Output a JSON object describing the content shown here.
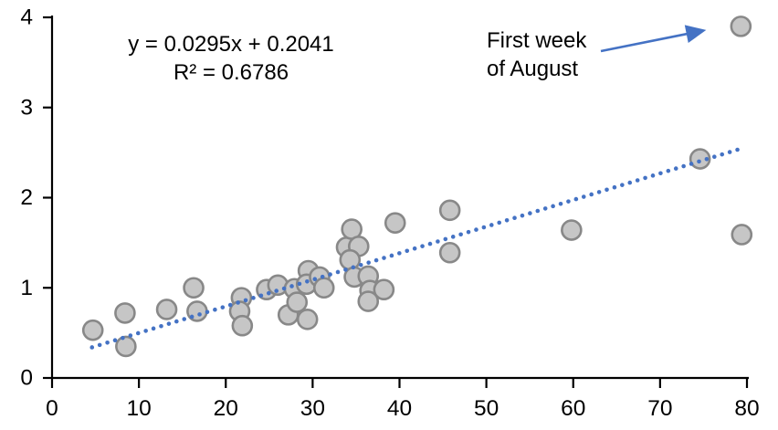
{
  "chart_data": {
    "type": "scatter",
    "title": "",
    "xlabel": "",
    "ylabel": "",
    "grid": false,
    "legend": "none",
    "points": [
      [
        4.7,
        0.53
      ],
      [
        8.4,
        0.72
      ],
      [
        8.5,
        0.35
      ],
      [
        13.2,
        0.76
      ],
      [
        16.3,
        1.0
      ],
      [
        16.7,
        0.74
      ],
      [
        21.8,
        0.89
      ],
      [
        21.6,
        0.74
      ],
      [
        21.9,
        0.58
      ],
      [
        24.7,
        0.98
      ],
      [
        26.0,
        1.03
      ],
      [
        27.9,
        0.99
      ],
      [
        27.2,
        0.7
      ],
      [
        28.2,
        0.84
      ],
      [
        29.5,
        1.19
      ],
      [
        29.3,
        1.04
      ],
      [
        30.8,
        1.12
      ],
      [
        31.3,
        1.0
      ],
      [
        29.4,
        0.65
      ],
      [
        33.9,
        1.45
      ],
      [
        34.5,
        1.65
      ],
      [
        35.3,
        1.46
      ],
      [
        34.3,
        1.31
      ],
      [
        34.8,
        1.12
      ],
      [
        36.4,
        1.13
      ],
      [
        36.6,
        0.97
      ],
      [
        38.2,
        0.98
      ],
      [
        36.4,
        0.85
      ],
      [
        39.5,
        1.72
      ],
      [
        45.8,
        1.86
      ],
      [
        45.8,
        1.39
      ],
      [
        59.8,
        1.64
      ],
      [
        74.6,
        2.43
      ],
      [
        79.3,
        3.9
      ],
      [
        79.4,
        1.59
      ]
    ],
    "trendline": {
      "equation": "y = 0.0295x + 0.2041",
      "r_squared": "R² = 0.6786",
      "slope": 0.0295,
      "intercept": 0.2041,
      "x_start": 4.6,
      "x_end": 79.0,
      "style": "dotted"
    },
    "annotation": {
      "line1": "First week",
      "line2": "of August",
      "target_point": [
        79.3,
        3.9
      ]
    },
    "x_axis": {
      "min": 0,
      "max": 80,
      "ticks": [
        0,
        10,
        20,
        30,
        40,
        50,
        60,
        70,
        80
      ]
    },
    "y_axis": {
      "min": 0,
      "max": 4,
      "ticks": [
        0,
        1,
        2,
        3,
        4
      ]
    },
    "colors": {
      "point_fill": "#c6c6c6",
      "point_stroke": "#888888",
      "trendline": "#4472c4",
      "arrow": "#4472c4",
      "axis": "#000000",
      "text": "#000000"
    }
  }
}
